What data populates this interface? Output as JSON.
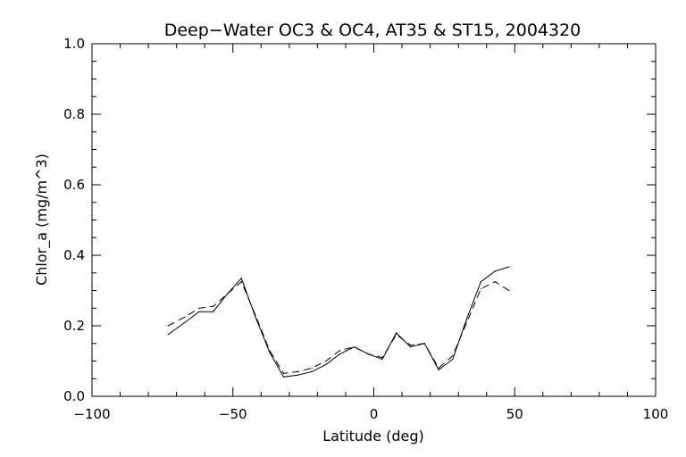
{
  "chart_data": {
    "type": "line",
    "title": "Deep−Water OC3 & OC4, AT35 & ST15, 2004320",
    "xlabel": "Latitude (deg)",
    "ylabel": "Chlor_a (mg/m^3)",
    "xlim": [
      -100,
      100
    ],
    "ylim": [
      0.0,
      1.0
    ],
    "xticks": [
      -100,
      -50,
      0,
      50,
      100
    ],
    "xtick_labels": [
      "−100",
      "−50",
      "0",
      "50",
      "100"
    ],
    "yticks": [
      0.0,
      0.2,
      0.4,
      0.6,
      0.8,
      1.0
    ],
    "ytick_labels": [
      "0.0",
      "0.2",
      "0.4",
      "0.6",
      "0.8",
      "1.0"
    ],
    "grid": false,
    "series": [
      {
        "style": "solid",
        "color": "#000000",
        "x": [
          -73,
          -67,
          -62,
          -57,
          -52,
          -47,
          -42,
          -37,
          -32,
          -27,
          -22,
          -17,
          -12,
          -7,
          -2,
          3,
          8,
          13,
          18,
          23,
          28,
          33,
          38,
          43,
          48
        ],
        "y": [
          0.175,
          0.21,
          0.24,
          0.24,
          0.29,
          0.335,
          0.225,
          0.125,
          0.055,
          0.06,
          0.07,
          0.09,
          0.12,
          0.14,
          0.12,
          0.105,
          0.18,
          0.14,
          0.15,
          0.075,
          0.105,
          0.22,
          0.325,
          0.355,
          0.367
        ]
      },
      {
        "style": "dashed",
        "color": "#000000",
        "x": [
          -73,
          -67,
          -62,
          -57,
          -52,
          -47,
          -42,
          -37,
          -32,
          -27,
          -22,
          -17,
          -12,
          -7,
          -2,
          3,
          8,
          13,
          18,
          23,
          28,
          33,
          38,
          43,
          48
        ],
        "y": [
          0.2,
          0.225,
          0.25,
          0.255,
          0.29,
          0.325,
          0.23,
          0.13,
          0.065,
          0.07,
          0.08,
          0.1,
          0.13,
          0.14,
          0.12,
          0.11,
          0.175,
          0.145,
          0.15,
          0.08,
          0.115,
          0.21,
          0.305,
          0.325,
          0.3
        ]
      }
    ]
  }
}
